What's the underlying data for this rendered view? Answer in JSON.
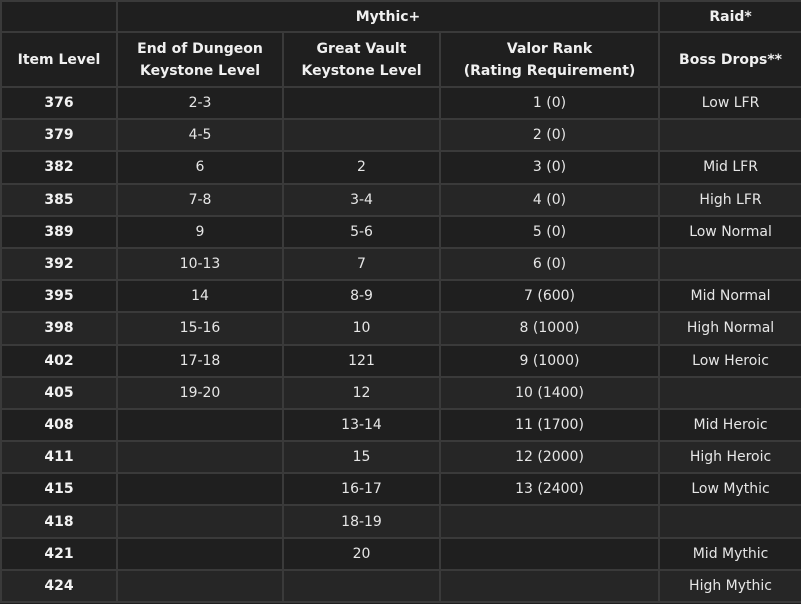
{
  "group_headers": {
    "mythic": "Mythic+",
    "raid": "Raid*"
  },
  "column_headers": {
    "item_level": "Item Level",
    "end_of_dungeon": [
      "End of Dungeon",
      "Keystone Level"
    ],
    "great_vault": [
      "Great Vault",
      "Keystone Level"
    ],
    "valor_rank": [
      "Valor Rank",
      "(Rating Requirement)"
    ],
    "boss_drops": "Boss Drops**"
  },
  "rows": [
    {
      "ilvl": "376",
      "eod": "2-3",
      "vault": "",
      "valor": "1 (0)",
      "raid": "Low LFR"
    },
    {
      "ilvl": "379",
      "eod": "4-5",
      "vault": "",
      "valor": "2 (0)",
      "raid": ""
    },
    {
      "ilvl": "382",
      "eod": "6",
      "vault": "2",
      "valor": "3 (0)",
      "raid": "Mid LFR"
    },
    {
      "ilvl": "385",
      "eod": "7-8",
      "vault": "3-4",
      "valor": "4 (0)",
      "raid": "High LFR"
    },
    {
      "ilvl": "389",
      "eod": "9",
      "vault": "5-6",
      "valor": "5 (0)",
      "raid": "Low Normal"
    },
    {
      "ilvl": "392",
      "eod": "10-13",
      "vault": "7",
      "valor": "6 (0)",
      "raid": ""
    },
    {
      "ilvl": "395",
      "eod": "14",
      "vault": "8-9",
      "valor": "7 (600)",
      "raid": "Mid Normal"
    },
    {
      "ilvl": "398",
      "eod": "15-16",
      "vault": "10",
      "valor": "8 (1000)",
      "raid": "High Normal"
    },
    {
      "ilvl": "402",
      "eod": "17-18",
      "vault": "121",
      "valor": "9 (1000)",
      "raid": "Low Heroic"
    },
    {
      "ilvl": "405",
      "eod": "19-20",
      "vault": "12",
      "valor": "10 (1400)",
      "raid": ""
    },
    {
      "ilvl": "408",
      "eod": "",
      "vault": "13-14",
      "valor": "11 (1700)",
      "raid": "Mid Heroic"
    },
    {
      "ilvl": "411",
      "eod": "",
      "vault": "15",
      "valor": "12 (2000)",
      "raid": "High Heroic"
    },
    {
      "ilvl": "415",
      "eod": "",
      "vault": "16-17",
      "valor": "13 (2400)",
      "raid": "Low Mythic"
    },
    {
      "ilvl": "418",
      "eod": "",
      "vault": "18-19",
      "valor": "",
      "raid": ""
    },
    {
      "ilvl": "421",
      "eod": "",
      "vault": "20",
      "valor": "",
      "raid": "Mid Mythic"
    },
    {
      "ilvl": "424",
      "eod": "",
      "vault": "",
      "valor": "",
      "raid": "High Mythic"
    }
  ]
}
